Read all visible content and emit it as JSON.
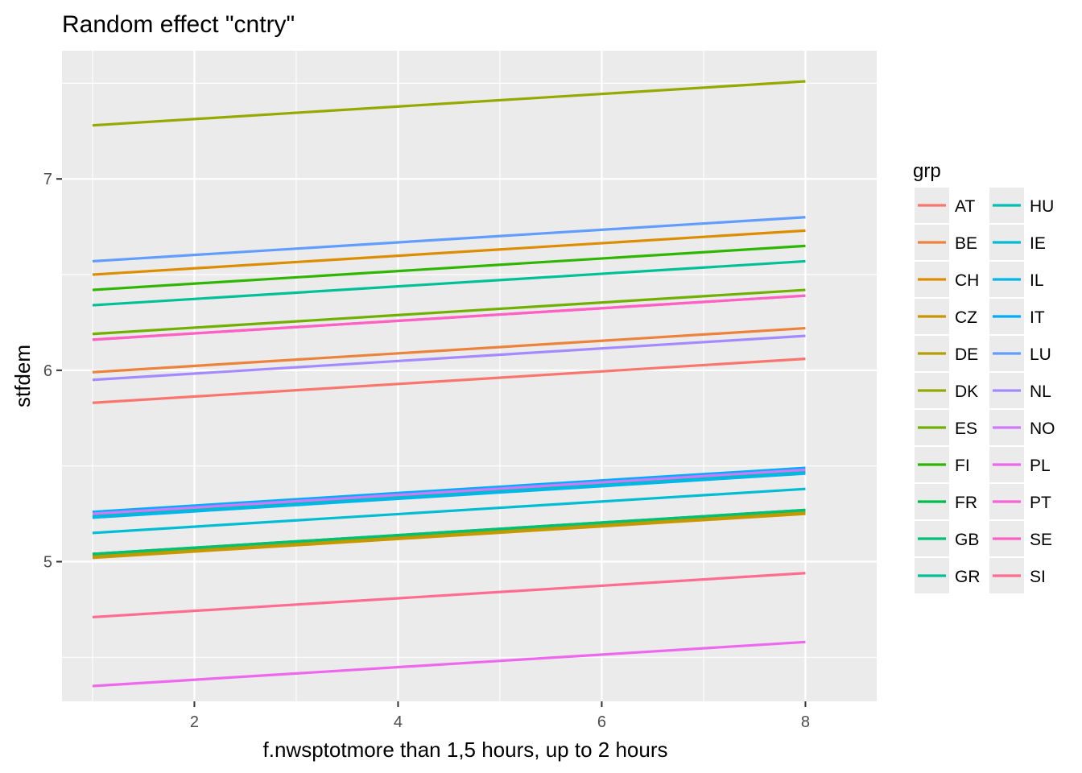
{
  "chart_data": {
    "type": "line",
    "title": "Random effect \"cntry\"",
    "xlabel": "f.nwsptotmore than 1,5 hours, up to 2 hours",
    "ylabel": "stfdem",
    "xlim": [
      0.7,
      8.7
    ],
    "ylim": [
      4.27,
      7.67
    ],
    "x_ticks": [
      2,
      4,
      6,
      8
    ],
    "y_ticks": [
      5,
      6,
      7
    ],
    "x_minor": [
      1,
      3,
      5,
      7
    ],
    "y_minor": [
      4.5,
      5.5,
      6.5,
      7.5
    ],
    "grid": true,
    "legend_title": "grp",
    "legend_position": "right",
    "x": [
      1,
      8
    ],
    "series": [
      {
        "name": "AT",
        "color": "#F8766D",
        "values": [
          5.83,
          6.06
        ]
      },
      {
        "name": "BE",
        "color": "#EC823C",
        "values": [
          5.99,
          6.22
        ]
      },
      {
        "name": "CH",
        "color": "#DD8D00",
        "values": [
          6.5,
          6.73
        ]
      },
      {
        "name": "CZ",
        "color": "#CA9700",
        "values": [
          5.02,
          5.25
        ]
      },
      {
        "name": "DE",
        "color": "#B3A000",
        "values": [
          5.03,
          5.26
        ]
      },
      {
        "name": "DK",
        "color": "#97A900",
        "values": [
          7.28,
          7.51
        ]
      },
      {
        "name": "ES",
        "color": "#71B000",
        "values": [
          6.19,
          6.42
        ]
      },
      {
        "name": "FI",
        "color": "#2FB600",
        "values": [
          6.42,
          6.65
        ]
      },
      {
        "name": "FR",
        "color": "#00BB4B",
        "values": [
          5.04,
          5.27
        ]
      },
      {
        "name": "GB",
        "color": "#00BF76",
        "values": [
          5.04,
          5.27
        ]
      },
      {
        "name": "GR",
        "color": "#00C098",
        "values": [
          6.34,
          6.57
        ]
      },
      {
        "name": "HU",
        "color": "#00C0B7",
        "values": [
          5.24,
          5.47
        ]
      },
      {
        "name": "IE",
        "color": "#00BDD4",
        "values": [
          5.15,
          5.38
        ]
      },
      {
        "name": "IL",
        "color": "#00B7ED",
        "values": [
          5.23,
          5.46
        ]
      },
      {
        "name": "IT",
        "color": "#00ADFA",
        "values": [
          5.26,
          5.49
        ]
      },
      {
        "name": "LU",
        "color": "#619CFF",
        "values": [
          6.57,
          6.8
        ]
      },
      {
        "name": "NL",
        "color": "#A58AFF",
        "values": [
          5.95,
          6.18
        ]
      },
      {
        "name": "NO",
        "color": "#D078FF",
        "values": [
          5.25,
          5.48
        ]
      },
      {
        "name": "PL",
        "color": "#ED68ED",
        "values": [
          4.35,
          4.58
        ]
      },
      {
        "name": "PT",
        "color": "#FA62D7",
        "values": [
          6.16,
          6.39
        ]
      },
      {
        "name": "SE",
        "color": "#FF61C3",
        "values": [
          6.16,
          6.39
        ]
      },
      {
        "name": "SI",
        "color": "#FF6C91",
        "values": [
          4.71,
          4.94
        ]
      }
    ]
  }
}
